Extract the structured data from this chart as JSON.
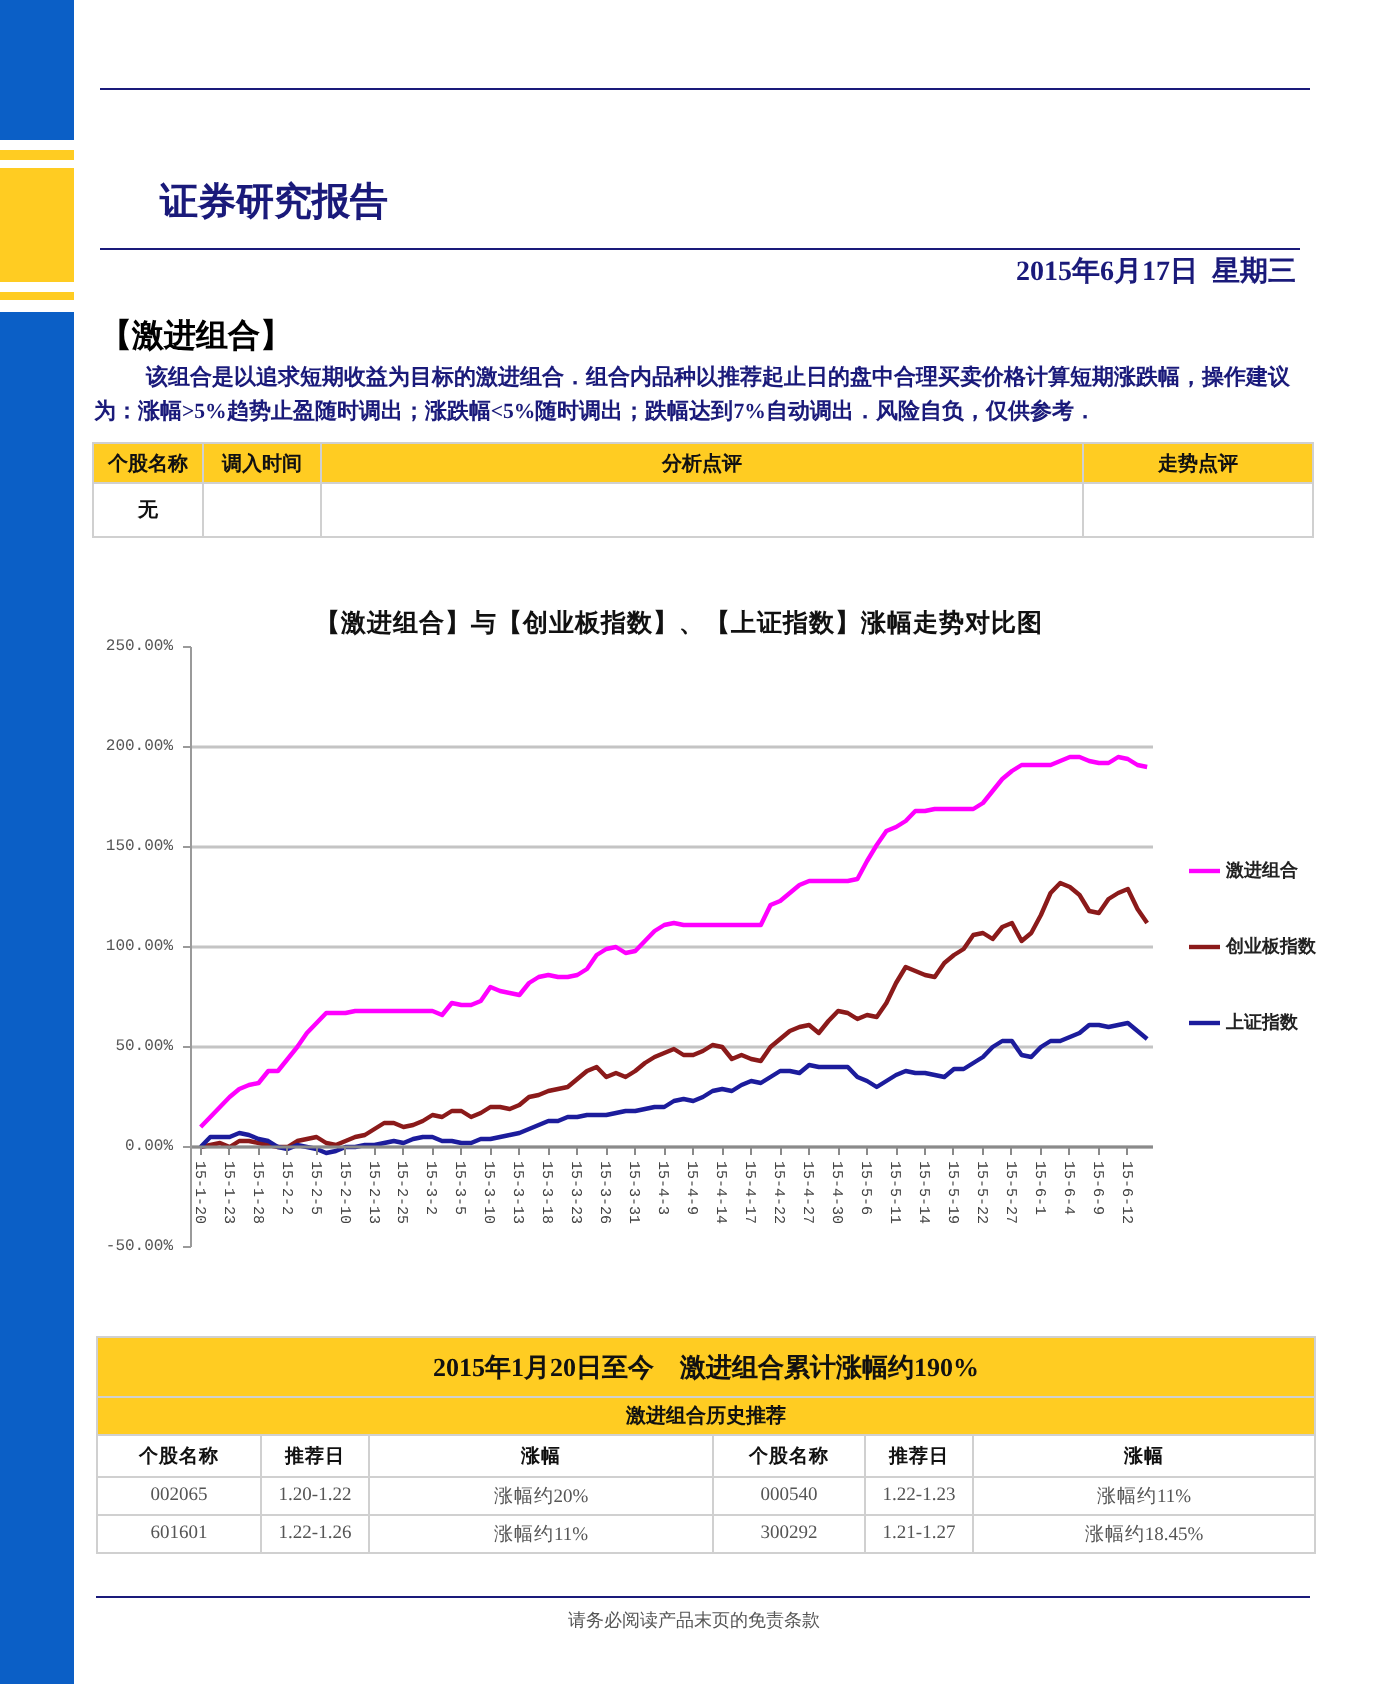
{
  "chart_data": {
    "type": "line",
    "title": "【激进组合】与【创业板指数】、【上证指数】涨幅走势对比图",
    "categories": [
      "15-1-20",
      null,
      null,
      "15-1-23",
      null,
      null,
      "15-1-28",
      null,
      null,
      "15-2-2",
      null,
      null,
      "15-2-5",
      null,
      null,
      "15-2-10",
      null,
      null,
      "15-2-13",
      null,
      null,
      "15-2-25",
      null,
      null,
      "15-3-2",
      null,
      null,
      "15-3-5",
      null,
      null,
      "15-3-10",
      null,
      null,
      "15-3-13",
      null,
      null,
      "15-3-18",
      null,
      null,
      "15-3-23",
      null,
      null,
      "15-3-26",
      null,
      null,
      "15-3-31",
      null,
      null,
      "15-4-3",
      null,
      null,
      "15-4-9",
      null,
      null,
      "15-4-14",
      null,
      null,
      "15-4-17",
      null,
      null,
      "15-4-22",
      null,
      null,
      "15-4-27",
      null,
      null,
      "15-4-30",
      null,
      null,
      "15-5-6",
      null,
      null,
      "15-5-11",
      null,
      null,
      "15-5-14",
      null,
      null,
      "15-5-19",
      null,
      null,
      "15-5-22",
      null,
      null,
      "15-5-27",
      null,
      null,
      "15-6-1",
      null,
      null,
      "15-6-4",
      null,
      null,
      "15-6-9",
      null,
      null,
      "15-6-12",
      null,
      null
    ],
    "series": [
      {
        "name": "激进组合",
        "color": "#ff00ff",
        "values": [
          10,
          15,
          20,
          25,
          29,
          31,
          32,
          38,
          38,
          44,
          50,
          57,
          62,
          67,
          67,
          67,
          68,
          68,
          68,
          68,
          68,
          68,
          68,
          68,
          68,
          66,
          72,
          71,
          71,
          73,
          80,
          78,
          77,
          76,
          82,
          85,
          86,
          85,
          85,
          86,
          89,
          96,
          99,
          100,
          97,
          98,
          103,
          108,
          111,
          112,
          111,
          111,
          111,
          111,
          111,
          111,
          111,
          111,
          111,
          121,
          123,
          127,
          131,
          133,
          133,
          133,
          133,
          133,
          134,
          143,
          151,
          158,
          160,
          163,
          168,
          168,
          169,
          169,
          169,
          169,
          169,
          172,
          178,
          184,
          188,
          191,
          191,
          191,
          191,
          193,
          195,
          195,
          193,
          192,
          192,
          195,
          194,
          191,
          190
        ]
      },
      {
        "name": "创业板指数",
        "color": "#8b1a1a",
        "values": [
          0,
          1,
          2,
          0,
          3,
          3,
          2,
          1,
          0,
          0,
          3,
          4,
          5,
          2,
          1,
          3,
          5,
          6,
          9,
          12,
          12,
          10,
          11,
          13,
          16,
          15,
          18,
          18,
          15,
          17,
          20,
          20,
          19,
          21,
          25,
          26,
          28,
          29,
          30,
          34,
          38,
          40,
          35,
          37,
          35,
          38,
          42,
          45,
          47,
          49,
          46,
          46,
          48,
          51,
          50,
          44,
          46,
          44,
          43,
          50,
          54,
          58,
          60,
          61,
          57,
          63,
          68,
          67,
          64,
          66,
          65,
          72,
          82,
          90,
          88,
          86,
          85,
          92,
          96,
          99,
          106,
          107,
          104,
          110,
          112,
          103,
          107,
          116,
          127,
          132,
          130,
          126,
          118,
          117,
          124,
          127,
          129,
          119,
          112
        ]
      },
      {
        "name": "上证指数",
        "color": "#1c1c9c",
        "values": [
          0,
          5,
          5,
          5,
          7,
          6,
          4,
          3,
          0,
          -1,
          1,
          0,
          -1,
          -3,
          -2,
          0,
          0,
          1,
          1,
          2,
          3,
          2,
          4,
          5,
          5,
          3,
          3,
          2,
          2,
          4,
          4,
          5,
          6,
          7,
          9,
          11,
          13,
          13,
          15,
          15,
          16,
          16,
          16,
          17,
          18,
          18,
          19,
          20,
          20,
          23,
          24,
          23,
          25,
          28,
          29,
          28,
          31,
          33,
          32,
          35,
          38,
          38,
          37,
          41,
          40,
          40,
          40,
          40,
          35,
          33,
          30,
          33,
          36,
          38,
          37,
          37,
          36,
          35,
          39,
          39,
          42,
          45,
          50,
          53,
          53,
          46,
          45,
          50,
          53,
          53,
          55,
          57,
          61,
          61,
          60,
          61,
          62,
          58,
          54
        ]
      }
    ],
    "ylim": [
      -50,
      250
    ],
    "yticks": [
      {
        "value": -50,
        "label": "-50.00%"
      },
      {
        "value": 0,
        "label": "0.00%"
      },
      {
        "value": 50,
        "label": "50.00%"
      },
      {
        "value": 100,
        "label": "100.00%"
      },
      {
        "value": 150,
        "label": "150.00%"
      },
      {
        "value": 200,
        "label": "200.00%"
      },
      {
        "value": 250,
        "label": "250.00%"
      }
    ],
    "grid": "y",
    "legend": "right",
    "annotations": [
      "证券研究报告",
      "2015年6月17日  星期三",
      "【激进组合】",
      "该组合是以追求短期收益为目标的激进组合．组合内品种以推荐起止日的盘中合理买卖价格计算短期涨跌幅，操作建议为：涨幅>5%趋势止盈随时调出；涨跌幅<5%随时调出；跌幅达到7%自动调出．风险自负，仅供参考．",
      "个股名称",
      "调入时间",
      "分析点评",
      "走势点评",
      "无",
      "2015年1月20日至今　激进组合累计涨幅约190%",
      "激进组合历史推荐",
      "个股名称",
      "推荐日",
      "涨幅",
      "个股名称",
      "推荐日",
      "涨幅",
      "002065",
      "1.20-1.22",
      "涨幅约20%",
      "000540",
      "1.22-1.23",
      "涨幅约11%",
      "601601",
      "1.22-1.26",
      "涨幅约11%",
      "300292",
      "1.21-1.27",
      "涨幅约18.45%",
      "请务必阅读产品末页的免责条款"
    ]
  }
}
